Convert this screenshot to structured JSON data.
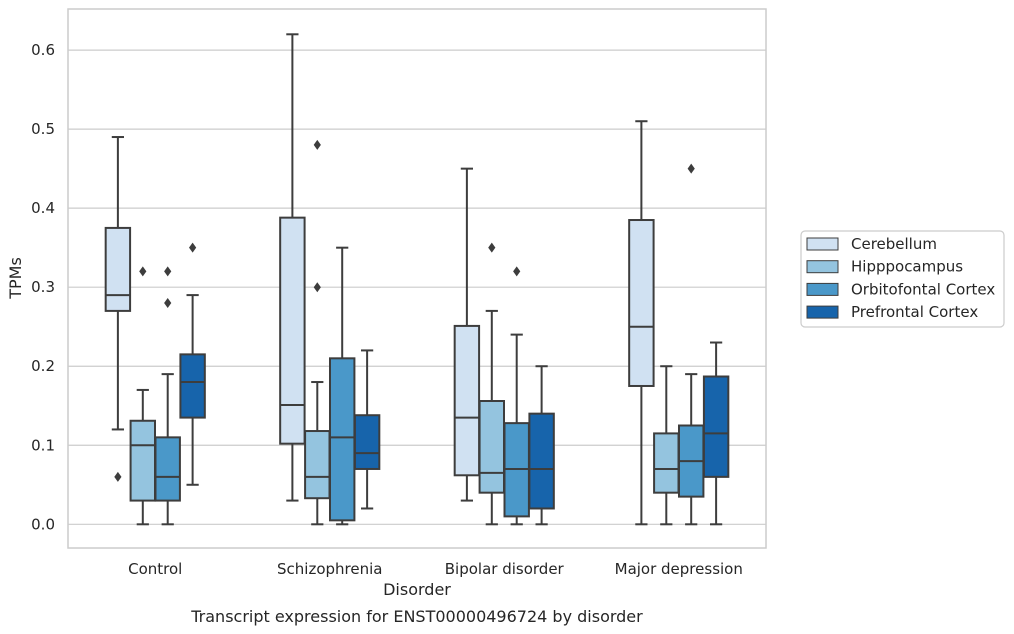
{
  "chart_data": {
    "type": "boxplot",
    "caption": "Transcript expression for ENST00000496724 by disorder",
    "xlabel": "Disorder",
    "ylabel": "TPMs",
    "ylim": [
      -0.03,
      0.652
    ],
    "yticks": [
      "0.0",
      "0.1",
      "0.2",
      "0.3",
      "0.4",
      "0.5",
      "0.6"
    ],
    "grid": "horizontal",
    "legend_position": "right",
    "categories": [
      "Control",
      "Schizophrenia",
      "Bipolar disorder",
      "Major depression"
    ],
    "series": [
      {
        "name": "Cerebellum",
        "color": "#d0e1f2",
        "boxes": [
          {
            "wlo": 0.12,
            "q1": 0.27,
            "med": 0.29,
            "q3": 0.375,
            "whi": 0.49,
            "out": [
              0.06
            ]
          },
          {
            "wlo": 0.03,
            "q1": 0.102,
            "med": 0.151,
            "q3": 0.388,
            "whi": 0.62,
            "out": []
          },
          {
            "wlo": 0.03,
            "q1": 0.062,
            "med": 0.135,
            "q3": 0.251,
            "whi": 0.45,
            "out": []
          },
          {
            "wlo": 0.0,
            "q1": 0.175,
            "med": 0.25,
            "q3": 0.385,
            "whi": 0.51,
            "out": []
          }
        ]
      },
      {
        "name": "Hipppocampus",
        "color": "#94c4df",
        "boxes": [
          {
            "wlo": 0.0,
            "q1": 0.03,
            "med": 0.1,
            "q3": 0.131,
            "whi": 0.17,
            "out": [
              0.32
            ]
          },
          {
            "wlo": 0.0,
            "q1": 0.033,
            "med": 0.06,
            "q3": 0.118,
            "whi": 0.18,
            "out": [
              0.3,
              0.48
            ]
          },
          {
            "wlo": 0.0,
            "q1": 0.04,
            "med": 0.065,
            "q3": 0.156,
            "whi": 0.27,
            "out": [
              0.35
            ]
          },
          {
            "wlo": 0.0,
            "q1": 0.04,
            "med": 0.07,
            "q3": 0.115,
            "whi": 0.2,
            "out": []
          }
        ]
      },
      {
        "name": "Orbitofontal Cortex",
        "color": "#4a98c9",
        "boxes": [
          {
            "wlo": 0.0,
            "q1": 0.03,
            "med": 0.06,
            "q3": 0.11,
            "whi": 0.19,
            "out": [
              0.28,
              0.32
            ]
          },
          {
            "wlo": 0.0,
            "q1": 0.005,
            "med": 0.11,
            "q3": 0.21,
            "whi": 0.35,
            "out": []
          },
          {
            "wlo": 0.0,
            "q1": 0.01,
            "med": 0.07,
            "q3": 0.128,
            "whi": 0.24,
            "out": [
              0.32
            ]
          },
          {
            "wlo": 0.0,
            "q1": 0.035,
            "med": 0.08,
            "q3": 0.125,
            "whi": 0.19,
            "out": [
              0.45
            ]
          }
        ]
      },
      {
        "name": "Prefrontal Cortex",
        "color": "#1764ab",
        "boxes": [
          {
            "wlo": 0.05,
            "q1": 0.135,
            "med": 0.18,
            "q3": 0.215,
            "whi": 0.29,
            "out": [
              0.35
            ]
          },
          {
            "wlo": 0.02,
            "q1": 0.07,
            "med": 0.09,
            "q3": 0.138,
            "whi": 0.22,
            "out": []
          },
          {
            "wlo": 0.0,
            "q1": 0.02,
            "med": 0.07,
            "q3": 0.14,
            "whi": 0.2,
            "out": []
          },
          {
            "wlo": 0.0,
            "q1": 0.06,
            "med": 0.115,
            "q3": 0.187,
            "whi": 0.23,
            "out": []
          }
        ]
      }
    ]
  }
}
